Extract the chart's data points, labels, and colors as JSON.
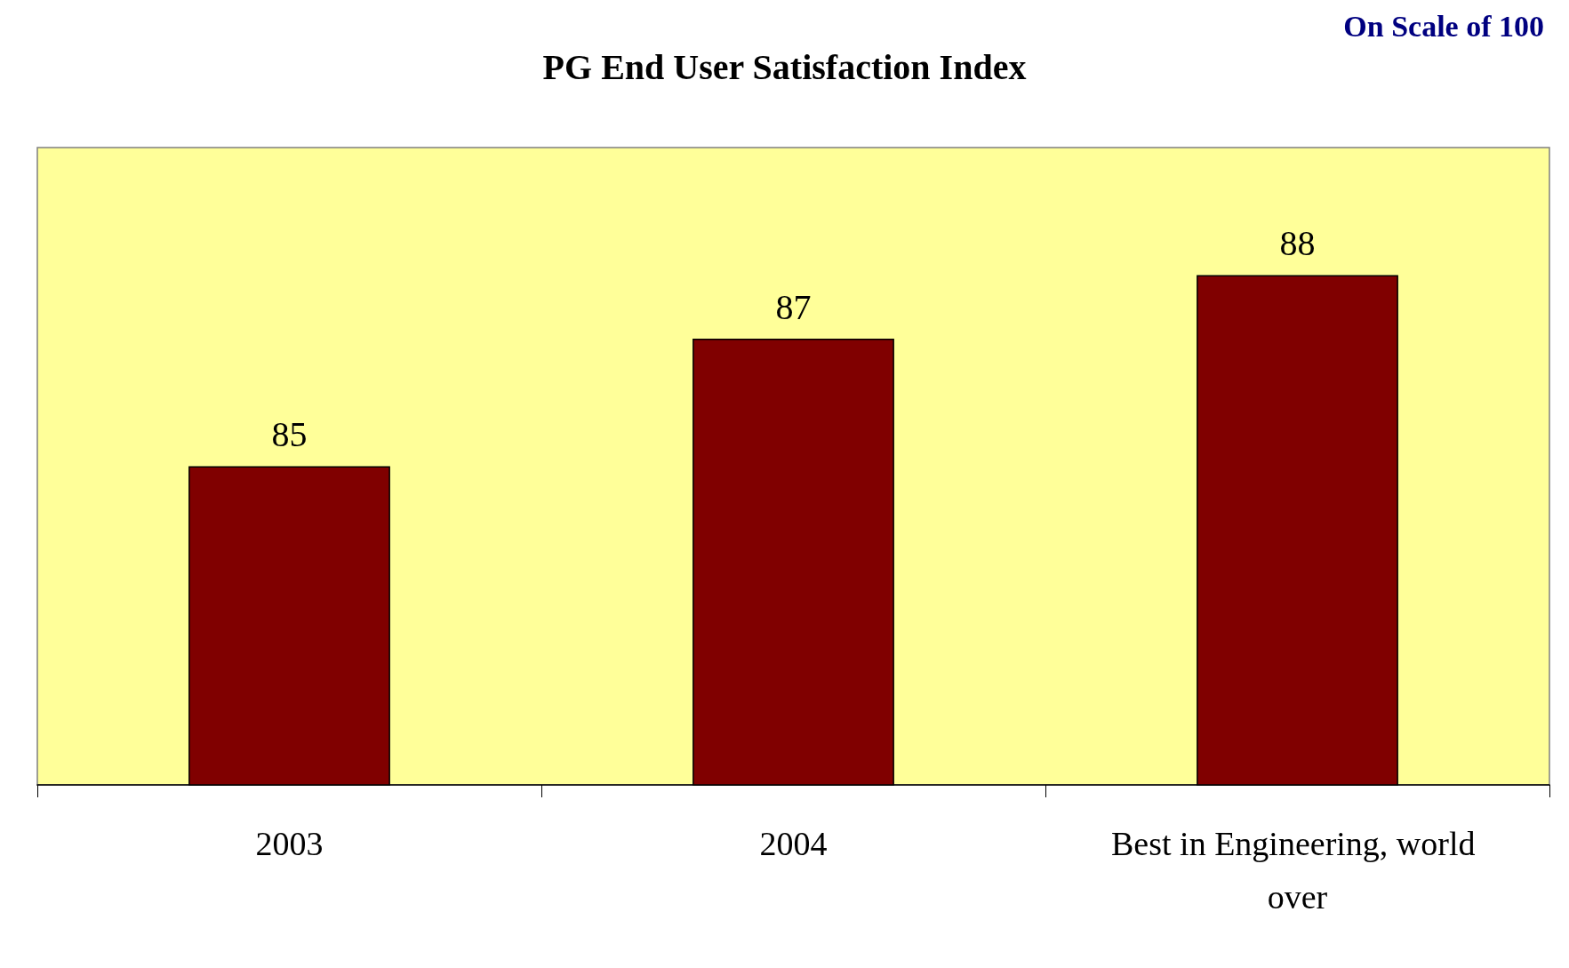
{
  "chart_data": {
    "type": "bar",
    "title": "PG End User Satisfaction Index",
    "annotations": [
      "On Scale of 100"
    ],
    "categories": [
      "2003",
      "2004",
      "Best in Engineering, world over"
    ],
    "values": [
      85,
      87,
      88
    ],
    "color": "#800000",
    "ylim": [
      80,
      90
    ],
    "data_labels": true,
    "tick_labels": "x"
  }
}
